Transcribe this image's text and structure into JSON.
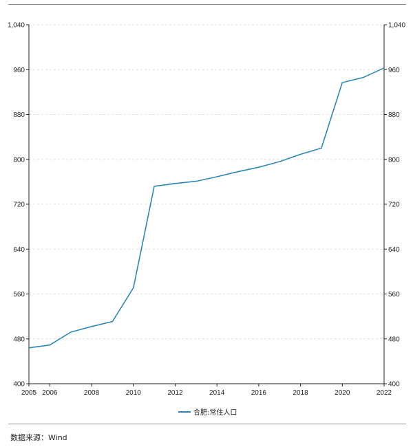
{
  "chart_data": {
    "type": "line",
    "title": "",
    "xlabel": "",
    "ylabel": "",
    "xlim": [
      2005,
      2022
    ],
    "ylim": [
      400,
      1040
    ],
    "x_ticks": [
      "2005",
      "2006",
      "2008",
      "2010",
      "2012",
      "2014",
      "2016",
      "2018",
      "2020",
      "2022"
    ],
    "y_ticks": [
      "400",
      "480",
      "560",
      "640",
      "720",
      "800",
      "880",
      "960",
      "1,040"
    ],
    "grid": "horizontal-dashed",
    "legend_position": "bottom-center",
    "series": [
      {
        "name": "合肥:常住人口",
        "color": "#2b86b6",
        "x": [
          2005,
          2006,
          2007,
          2008,
          2009,
          2010,
          2011,
          2012,
          2013,
          2014,
          2015,
          2016,
          2017,
          2018,
          2019,
          2020,
          2021,
          2022
        ],
        "values": [
          464,
          469,
          492,
          502,
          511,
          571,
          752,
          757,
          761,
          769,
          778,
          786,
          796,
          809,
          820,
          937,
          946,
          963
        ]
      }
    ]
  },
  "footer": {
    "source": "数据来源：Wind"
  }
}
